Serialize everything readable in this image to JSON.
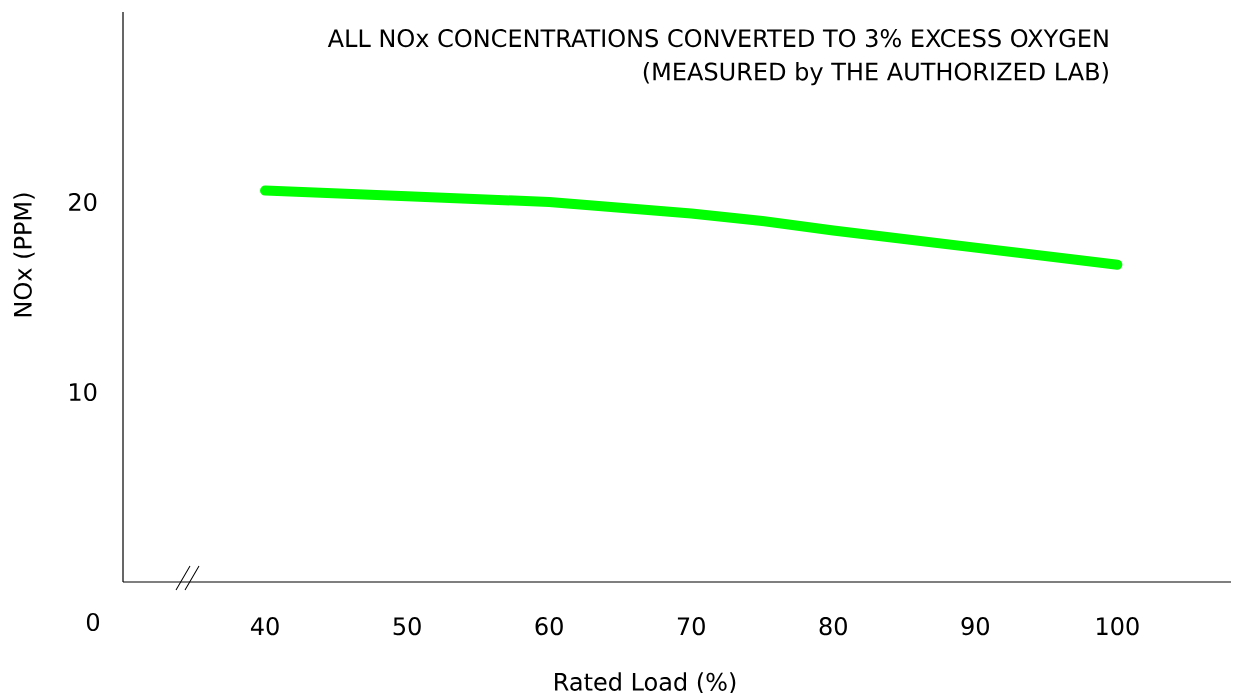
{
  "chart_data": {
    "type": "line",
    "title": "ALL NOx CONCENTRATIONS CONVERTED TO 3% EXCESS OXYGEN",
    "subtitle": "(MEASURED by THE AUTHORIZED LAB)",
    "xlabel": "Rated Load (%)",
    "ylabel": "NOx (PPM)",
    "annotations": [
      "0"
    ],
    "x": [
      40,
      50,
      60,
      70,
      75,
      80,
      90,
      100
    ],
    "series": [
      {
        "color": "#00ff00",
        "values": [
          20.6,
          20.3,
          20.0,
          19.4,
          19.0,
          18.5,
          17.6,
          16.7
        ]
      }
    ],
    "xlim": [
      30,
      108
    ],
    "ylim": [
      0,
      30
    ],
    "xticks": [
      40,
      50,
      60,
      70,
      80,
      90,
      100
    ],
    "yticks": [
      10,
      20
    ],
    "grid": false,
    "marker": "none",
    "line_style": "solid"
  }
}
